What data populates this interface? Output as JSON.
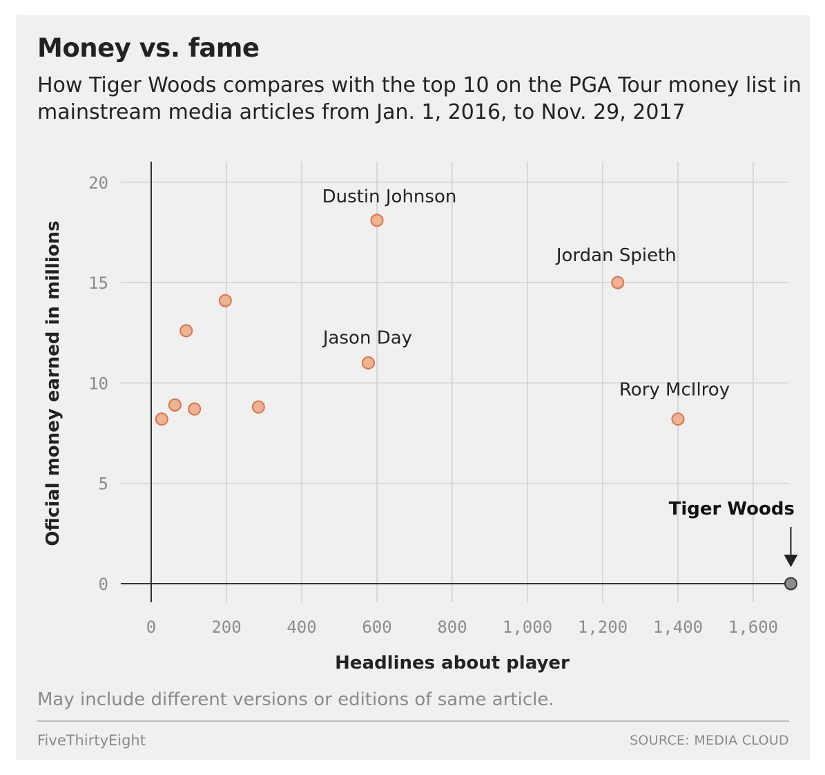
{
  "header": {
    "title": "Money vs. fame",
    "subtitle": "How Tiger Woods compares with the top 10 on the PGA Tour money list in mainstream media articles from Jan. 1, 2016, to Nov. 29, 2017"
  },
  "footer": {
    "note": "May include different versions or editions of same article.",
    "brand": "FiveThirtyEight",
    "source": "SOURCE: MEDIA CLOUD"
  },
  "colors": {
    "point_fill": "#eeb294",
    "point_stroke": "#d9744a",
    "highlight_fill": "#8c8c8c",
    "highlight_stroke": "#333333",
    "grid": "#d0d0d0",
    "axis": "#333333",
    "background": "#f0f0f0"
  },
  "chart_data": {
    "type": "scatter",
    "title": "Money vs. fame",
    "xlabel": "Headlines about player",
    "ylabel": "Oficial money earned in millions",
    "xlim": [
      -80,
      1700
    ],
    "ylim": [
      -1.5,
      21
    ],
    "xticks": [
      0,
      200,
      400,
      600,
      800,
      1000,
      1200,
      1400,
      1600
    ],
    "xtick_labels": [
      "0",
      "200",
      "400",
      "600",
      "800",
      "1,000",
      "1,200",
      "1,400",
      "1,600"
    ],
    "yticks": [
      0,
      5,
      10,
      15,
      20
    ],
    "ytick_labels": [
      "0",
      "5",
      "10",
      "15",
      "20"
    ],
    "grid": true,
    "points": [
      {
        "x": 600,
        "y": 18.1,
        "label": "Dustin Johnson"
      },
      {
        "x": 1240,
        "y": 15.0,
        "label": "Jordan Spieth"
      },
      {
        "x": 577,
        "y": 11.0,
        "label": "Jason Day"
      },
      {
        "x": 1400,
        "y": 8.2,
        "label": "Rory McIlroy"
      },
      {
        "x": 197,
        "y": 14.1,
        "label": ""
      },
      {
        "x": 93,
        "y": 12.6,
        "label": ""
      },
      {
        "x": 63,
        "y": 8.9,
        "label": ""
      },
      {
        "x": 115,
        "y": 8.7,
        "label": ""
      },
      {
        "x": 285,
        "y": 8.8,
        "label": ""
      },
      {
        "x": 28,
        "y": 8.2,
        "label": ""
      }
    ],
    "highlight": {
      "x": 1700,
      "y": 0,
      "label": "Tiger Woods"
    }
  }
}
